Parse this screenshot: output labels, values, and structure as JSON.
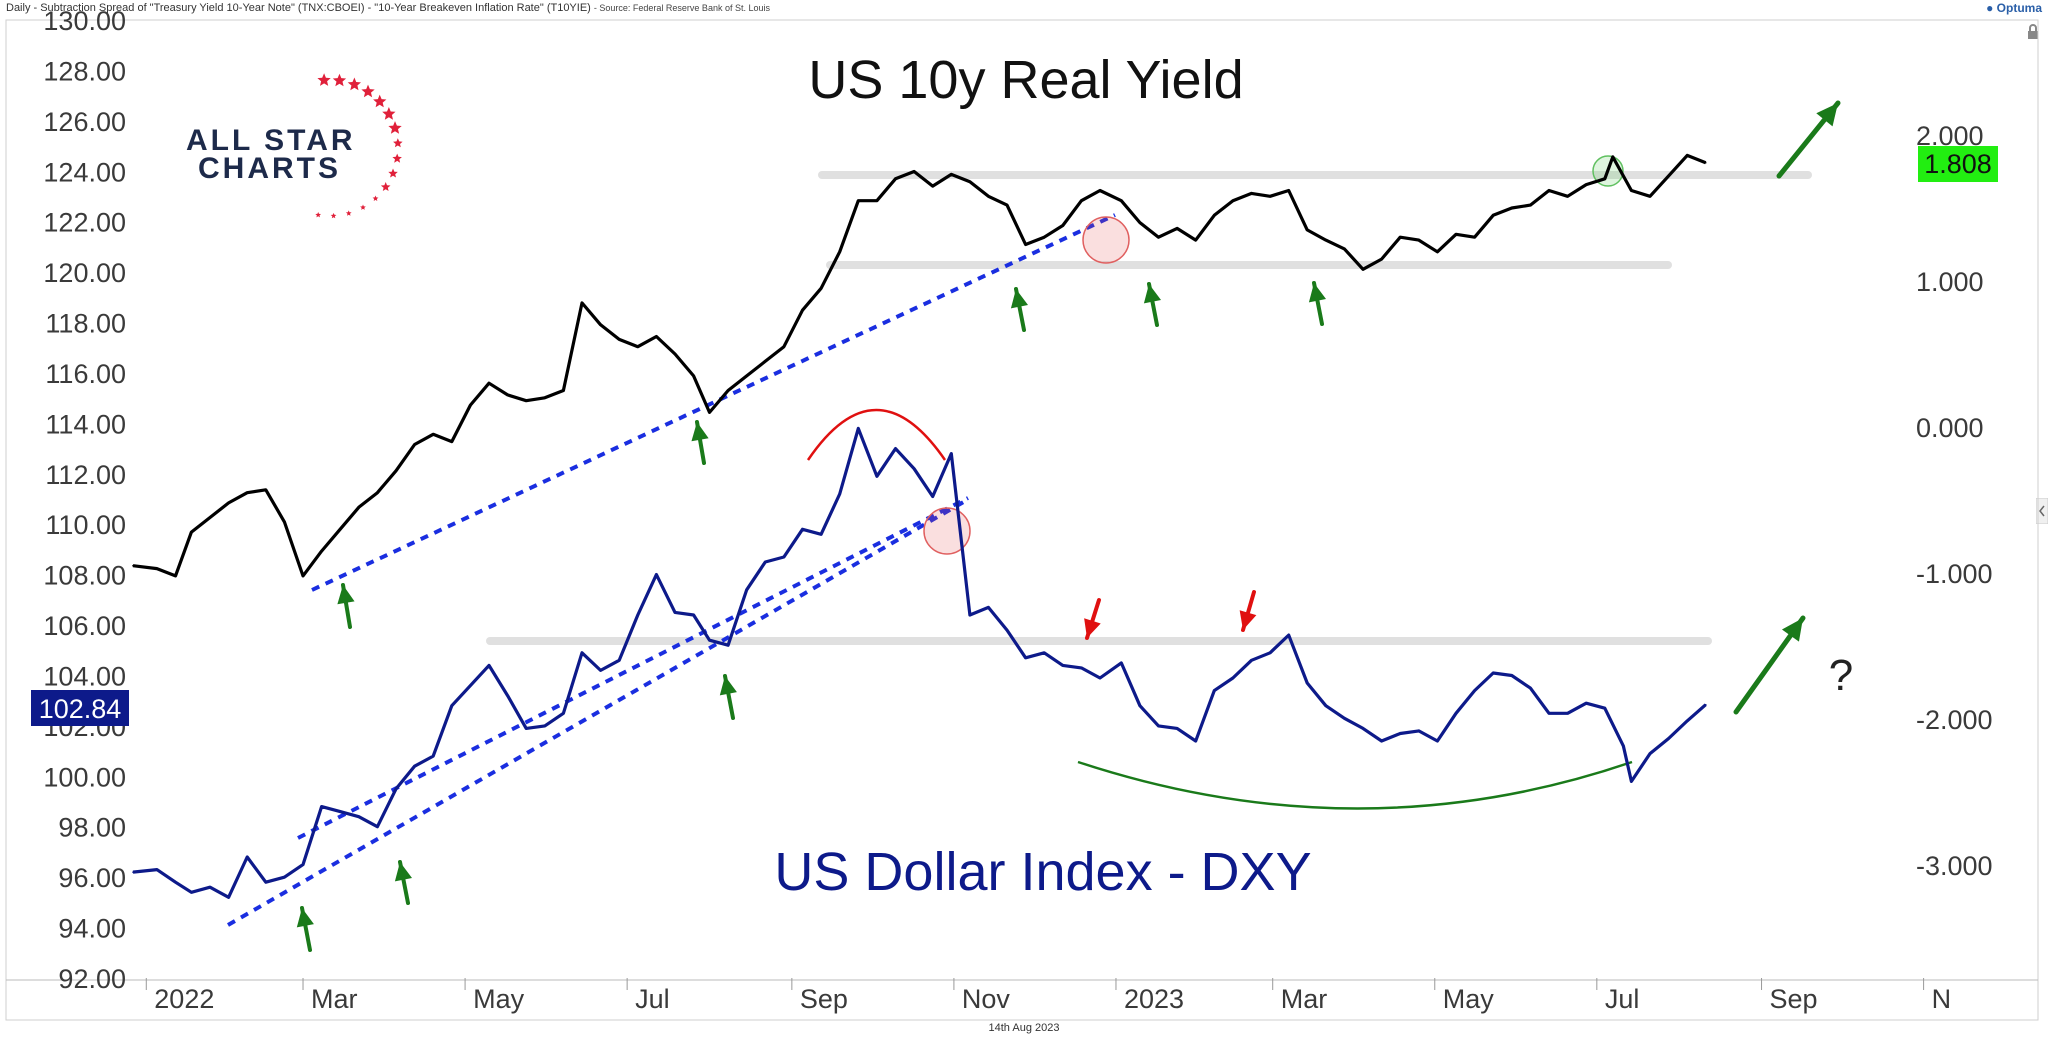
{
  "header": {
    "title": "Daily - Subtraction Spread of \"Treasury Yield 10-Year Note\" (TNX:CBOEI) - \"10-Year Breakeven Inflation Rate\" (T10YIE)",
    "source": "- Source: Federal Reserve Bank of St. Louis",
    "brand": "Optuma"
  },
  "footer": {
    "date": "14th Aug 2023"
  },
  "logo": {
    "line1": "ALL STAR",
    "line2": "CHARTS"
  },
  "colors": {
    "real_yield": "#000000",
    "dxy": "#0d1a8a",
    "trend": "#1a2ee0",
    "support": "#d6d6d6",
    "arrow_up": "#1a7a1a",
    "arrow_down": "#e01010",
    "badge_green": "#22ee11",
    "badge_navy": "#0d1a8a"
  },
  "chart_data": {
    "type": "line",
    "title": "",
    "x_labels": [
      "2022",
      "Mar",
      "May",
      "Jul",
      "Sep",
      "Nov",
      "2023",
      "Mar",
      "May",
      "Jul",
      "Sep",
      "N"
    ],
    "y_left": {
      "ticks": [
        "130.00",
        "128.00",
        "126.00",
        "124.00",
        "122.00",
        "120.00",
        "118.00",
        "116.00",
        "114.00",
        "112.00",
        "110.00",
        "108.00",
        "106.00",
        "104.00",
        "102.00",
        "100.00",
        "98.00",
        "96.00",
        "94.00",
        "92.00"
      ],
      "range": [
        92,
        130
      ]
    },
    "y_right": {
      "ticks": [
        "2.000",
        "1.000",
        "0.000",
        "-1.000",
        "-2.000",
        "-3.000"
      ],
      "range": [
        -3.8,
        2.9
      ]
    },
    "annotations": {
      "real_yield_label": "US 10y Real Yield",
      "dxy_label": "US Dollar Index - DXY",
      "question": "?",
      "last_real_yield": "1.808",
      "last_dxy": "102.84"
    },
    "series": [
      {
        "name": "US 10y Real Yield",
        "axis": "right",
        "values": [
          [
            "2021-12-27",
            -0.95
          ],
          [
            "2022-01-05",
            -0.97
          ],
          [
            "2022-01-12",
            -1.02
          ],
          [
            "2022-01-18",
            -0.72
          ],
          [
            "2022-01-25",
            -0.62
          ],
          [
            "2022-02-01",
            -0.52
          ],
          [
            "2022-02-08",
            -0.45
          ],
          [
            "2022-02-15",
            -0.43
          ],
          [
            "2022-02-22",
            -0.65
          ],
          [
            "2022-03-01",
            -1.02
          ],
          [
            "2022-03-08",
            -0.85
          ],
          [
            "2022-03-15",
            -0.7
          ],
          [
            "2022-03-22",
            -0.55
          ],
          [
            "2022-03-29",
            -0.45
          ],
          [
            "2022-04-05",
            -0.3
          ],
          [
            "2022-04-12",
            -0.12
          ],
          [
            "2022-04-19",
            -0.05
          ],
          [
            "2022-04-26",
            -0.1
          ],
          [
            "2022-05-03",
            0.15
          ],
          [
            "2022-05-10",
            0.3
          ],
          [
            "2022-05-17",
            0.22
          ],
          [
            "2022-05-24",
            0.18
          ],
          [
            "2022-05-31",
            0.2
          ],
          [
            "2022-06-07",
            0.25
          ],
          [
            "2022-06-14",
            0.85
          ],
          [
            "2022-06-21",
            0.7
          ],
          [
            "2022-06-28",
            0.6
          ],
          [
            "2022-07-05",
            0.55
          ],
          [
            "2022-07-12",
            0.62
          ],
          [
            "2022-07-19",
            0.5
          ],
          [
            "2022-07-26",
            0.35
          ],
          [
            "2022-08-01",
            0.1
          ],
          [
            "2022-08-08",
            0.25
          ],
          [
            "2022-08-15",
            0.35
          ],
          [
            "2022-08-22",
            0.45
          ],
          [
            "2022-08-29",
            0.55
          ],
          [
            "2022-09-05",
            0.8
          ],
          [
            "2022-09-12",
            0.95
          ],
          [
            "2022-09-19",
            1.2
          ],
          [
            "2022-09-26",
            1.55
          ],
          [
            "2022-10-03",
            1.55
          ],
          [
            "2022-10-10",
            1.7
          ],
          [
            "2022-10-17",
            1.75
          ],
          [
            "2022-10-24",
            1.65
          ],
          [
            "2022-10-31",
            1.73
          ],
          [
            "2022-11-07",
            1.68
          ],
          [
            "2022-11-14",
            1.58
          ],
          [
            "2022-11-21",
            1.52
          ],
          [
            "2022-11-28",
            1.25
          ],
          [
            "2022-12-05",
            1.3
          ],
          [
            "2022-12-12",
            1.38
          ],
          [
            "2022-12-19",
            1.55
          ],
          [
            "2022-12-26",
            1.62
          ],
          [
            "2023-01-03",
            1.55
          ],
          [
            "2023-01-10",
            1.4
          ],
          [
            "2023-01-17",
            1.3
          ],
          [
            "2023-01-24",
            1.36
          ],
          [
            "2023-01-31",
            1.28
          ],
          [
            "2023-02-07",
            1.45
          ],
          [
            "2023-02-14",
            1.55
          ],
          [
            "2023-02-21",
            1.6
          ],
          [
            "2023-02-28",
            1.58
          ],
          [
            "2023-03-07",
            1.62
          ],
          [
            "2023-03-14",
            1.35
          ],
          [
            "2023-03-21",
            1.28
          ],
          [
            "2023-03-28",
            1.22
          ],
          [
            "2023-04-04",
            1.08
          ],
          [
            "2023-04-11",
            1.15
          ],
          [
            "2023-04-18",
            1.3
          ],
          [
            "2023-04-25",
            1.28
          ],
          [
            "2023-05-02",
            1.2
          ],
          [
            "2023-05-09",
            1.32
          ],
          [
            "2023-05-16",
            1.3
          ],
          [
            "2023-05-23",
            1.45
          ],
          [
            "2023-05-30",
            1.5
          ],
          [
            "2023-06-06",
            1.52
          ],
          [
            "2023-06-13",
            1.62
          ],
          [
            "2023-06-20",
            1.58
          ],
          [
            "2023-06-27",
            1.66
          ],
          [
            "2023-07-04",
            1.7
          ],
          [
            "2023-07-07",
            1.85
          ],
          [
            "2023-07-14",
            1.62
          ],
          [
            "2023-07-21",
            1.58
          ],
          [
            "2023-07-28",
            1.72
          ],
          [
            "2023-08-04",
            1.86
          ],
          [
            "2023-08-11",
            1.81
          ]
        ]
      },
      {
        "name": "US Dollar Index - DXY",
        "axis": "left",
        "values": [
          [
            "2021-12-27",
            96.2
          ],
          [
            "2022-01-05",
            96.3
          ],
          [
            "2022-01-12",
            95.8
          ],
          [
            "2022-01-18",
            95.4
          ],
          [
            "2022-01-25",
            95.6
          ],
          [
            "2022-02-01",
            95.2
          ],
          [
            "2022-02-08",
            96.8
          ],
          [
            "2022-02-15",
            95.8
          ],
          [
            "2022-02-22",
            96.0
          ],
          [
            "2022-03-01",
            96.5
          ],
          [
            "2022-03-08",
            98.8
          ],
          [
            "2022-03-15",
            98.6
          ],
          [
            "2022-03-22",
            98.4
          ],
          [
            "2022-03-29",
            98.0
          ],
          [
            "2022-04-05",
            99.5
          ],
          [
            "2022-04-12",
            100.4
          ],
          [
            "2022-04-19",
            100.8
          ],
          [
            "2022-04-26",
            102.8
          ],
          [
            "2022-05-03",
            103.6
          ],
          [
            "2022-05-10",
            104.4
          ],
          [
            "2022-05-17",
            103.2
          ],
          [
            "2022-05-24",
            101.9
          ],
          [
            "2022-05-31",
            102.0
          ],
          [
            "2022-06-07",
            102.5
          ],
          [
            "2022-06-14",
            104.9
          ],
          [
            "2022-06-21",
            104.2
          ],
          [
            "2022-06-28",
            104.6
          ],
          [
            "2022-07-05",
            106.4
          ],
          [
            "2022-07-12",
            108.0
          ],
          [
            "2022-07-19",
            106.5
          ],
          [
            "2022-07-26",
            106.4
          ],
          [
            "2022-08-01",
            105.4
          ],
          [
            "2022-08-08",
            105.2
          ],
          [
            "2022-08-15",
            107.4
          ],
          [
            "2022-08-22",
            108.5
          ],
          [
            "2022-08-29",
            108.7
          ],
          [
            "2022-09-05",
            109.8
          ],
          [
            "2022-09-12",
            109.6
          ],
          [
            "2022-09-19",
            111.2
          ],
          [
            "2022-09-26",
            113.8
          ],
          [
            "2022-10-03",
            111.9
          ],
          [
            "2022-10-10",
            113.0
          ],
          [
            "2022-10-17",
            112.2
          ],
          [
            "2022-10-24",
            111.1
          ],
          [
            "2022-10-31",
            112.8
          ],
          [
            "2022-11-07",
            106.4
          ],
          [
            "2022-11-14",
            106.7
          ],
          [
            "2022-11-21",
            105.8
          ],
          [
            "2022-11-28",
            104.7
          ],
          [
            "2022-12-05",
            104.9
          ],
          [
            "2022-12-12",
            104.4
          ],
          [
            "2022-12-19",
            104.3
          ],
          [
            "2022-12-26",
            103.9
          ],
          [
            "2023-01-03",
            104.5
          ],
          [
            "2023-01-10",
            102.8
          ],
          [
            "2023-01-17",
            102.0
          ],
          [
            "2023-01-24",
            101.9
          ],
          [
            "2023-01-31",
            101.4
          ],
          [
            "2023-02-07",
            103.4
          ],
          [
            "2023-02-14",
            103.9
          ],
          [
            "2023-02-21",
            104.6
          ],
          [
            "2023-02-28",
            104.9
          ],
          [
            "2023-03-07",
            105.6
          ],
          [
            "2023-03-14",
            103.7
          ],
          [
            "2023-03-21",
            102.8
          ],
          [
            "2023-03-28",
            102.3
          ],
          [
            "2023-04-04",
            101.9
          ],
          [
            "2023-04-11",
            101.4
          ],
          [
            "2023-04-18",
            101.7
          ],
          [
            "2023-04-25",
            101.8
          ],
          [
            "2023-05-02",
            101.4
          ],
          [
            "2023-05-09",
            102.5
          ],
          [
            "2023-05-16",
            103.4
          ],
          [
            "2023-05-23",
            104.1
          ],
          [
            "2023-05-30",
            104.0
          ],
          [
            "2023-06-06",
            103.5
          ],
          [
            "2023-06-13",
            102.5
          ],
          [
            "2023-06-20",
            102.5
          ],
          [
            "2023-06-27",
            102.9
          ],
          [
            "2023-07-04",
            102.7
          ],
          [
            "2023-07-11",
            101.2
          ],
          [
            "2023-07-14",
            99.8
          ],
          [
            "2023-07-21",
            100.9
          ],
          [
            "2023-07-28",
            101.5
          ],
          [
            "2023-08-04",
            102.2
          ],
          [
            "2023-08-11",
            102.84
          ]
        ]
      }
    ]
  }
}
